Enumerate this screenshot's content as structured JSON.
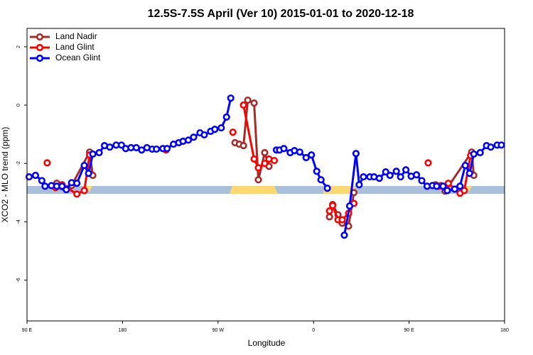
{
  "chart_data": {
    "type": "line",
    "title": "12.5S-7.5S April (Ver 10)   2015-01-01 to 2020-12-18",
    "x_label": "Longitude",
    "y_label": "XCO2 - MLO trend (ppm)",
    "xlim": [
      90,
      540
    ],
    "xticks": [
      {
        "value": 90,
        "label": "90 E"
      },
      {
        "value": 180,
        "label": "180"
      },
      {
        "value": 270,
        "label": "90 W"
      },
      {
        "value": 360,
        "label": "0"
      },
      {
        "value": 450,
        "label": "90 E"
      },
      {
        "value": 540,
        "label": "180"
      }
    ],
    "ylim": [
      -7.4,
      2.63
    ],
    "yticks": [
      -6,
      -4,
      -2,
      0,
      2
    ],
    "legend": "top-left",
    "series": [
      {
        "name": "Land Nadir",
        "color": "#a52a2a",
        "x": [
          118,
          123,
          132,
          149,
          152,
          null,
          286,
          290,
          294,
          298,
          304,
          308,
          314,
          318,
          null,
          375,
          378,
          383,
          387,
          393,
          398,
          null,
          475,
          480,
          484,
          509,
          511
        ],
        "values": [
          -2.68,
          -2.8,
          -2.76,
          -1.61,
          -2.41,
          null,
          -1.29,
          -1.34,
          -1.39,
          0.17,
          0.07,
          -2.56,
          -1.63,
          -2.1,
          null,
          -3.83,
          -3.41,
          -3.76,
          -4.05,
          -4.15,
          -3.0,
          null,
          -2.73,
          -2.76,
          -2.95,
          -1.61,
          -2.41
        ]
      },
      {
        "name": "Land Glint",
        "color": "#ff0000",
        "x": [
          109,
          null,
          117,
          123,
          137,
          144,
          149,
          null,
          221,
          null,
          284,
          null,
          294,
          304,
          308,
          314,
          318,
          323,
          null,
          375,
          378,
          383,
          387,
          393,
          398,
          null,
          468,
          null,
          478,
          487,
          498,
          502,
          508
        ],
        "values": [
          -1.98,
          null,
          -2.83,
          -2.73,
          -3.05,
          -2.93,
          -1.71,
          null,
          -1.54,
          null,
          -0.93,
          null,
          0.0,
          -1.85,
          -2.15,
          -2.0,
          -1.85,
          -1.9,
          null,
          -3.63,
          -3.44,
          -3.93,
          -3.93,
          -3.71,
          -3.37,
          null,
          -1.98,
          null,
          -2.78,
          -2.68,
          -3.02,
          -2.93,
          -1.73
        ]
      },
      {
        "name": "Ocean Glint",
        "color": "#0000ff",
        "x": [
          92,
          98,
          104,
          107,
          113,
          118,
          123,
          127,
          132,
          137,
          144,
          148,
          152,
          158,
          163,
          168,
          174,
          179,
          183,
          188,
          193,
          198,
          203,
          208,
          212,
          218,
          222,
          228,
          233,
          237,
          242,
          247,
          253,
          257,
          263,
          267,
          273,
          278,
          282,
          null,
          325,
          328,
          332,
          338,
          342,
          347,
          353,
          358,
          363,
          367,
          373,
          null,
          389,
          394,
          400,
          403,
          407,
          413,
          417,
          422,
          428,
          432,
          438,
          442,
          447,
          452,
          457,
          462,
          467,
          472,
          476,
          482,
          486,
          493,
          498,
          503,
          507,
          511,
          517,
          523,
          527,
          533,
          537
        ],
        "values": [
          -2.46,
          -2.41,
          -2.59,
          -2.78,
          -2.76,
          -2.78,
          -2.78,
          -2.9,
          -2.66,
          -2.68,
          -2.07,
          -2.34,
          -1.68,
          -1.63,
          -1.39,
          -1.44,
          -1.37,
          -1.37,
          -1.49,
          -1.46,
          -1.46,
          -1.54,
          -1.46,
          -1.51,
          -1.51,
          -1.49,
          -1.49,
          -1.34,
          -1.29,
          -1.24,
          -1.2,
          -1.1,
          -0.95,
          -1.02,
          -0.9,
          -0.83,
          -0.78,
          -0.41,
          0.24,
          null,
          -1.54,
          -1.54,
          -1.49,
          -1.63,
          -1.56,
          -1.61,
          -1.8,
          -1.71,
          -2.27,
          -2.56,
          -2.85,
          null,
          -4.46,
          -3.46,
          -1.66,
          -2.73,
          -2.46,
          -2.46,
          -2.46,
          -2.51,
          -2.29,
          -2.41,
          -2.27,
          -2.46,
          -2.22,
          -2.44,
          -2.39,
          -2.59,
          -2.78,
          -2.76,
          -2.78,
          -2.78,
          -2.93,
          -2.88,
          -2.78,
          -2.07,
          -2.34,
          -1.68,
          -1.63,
          -1.39,
          -1.44,
          -1.37,
          -1.37
        ]
      }
    ]
  }
}
